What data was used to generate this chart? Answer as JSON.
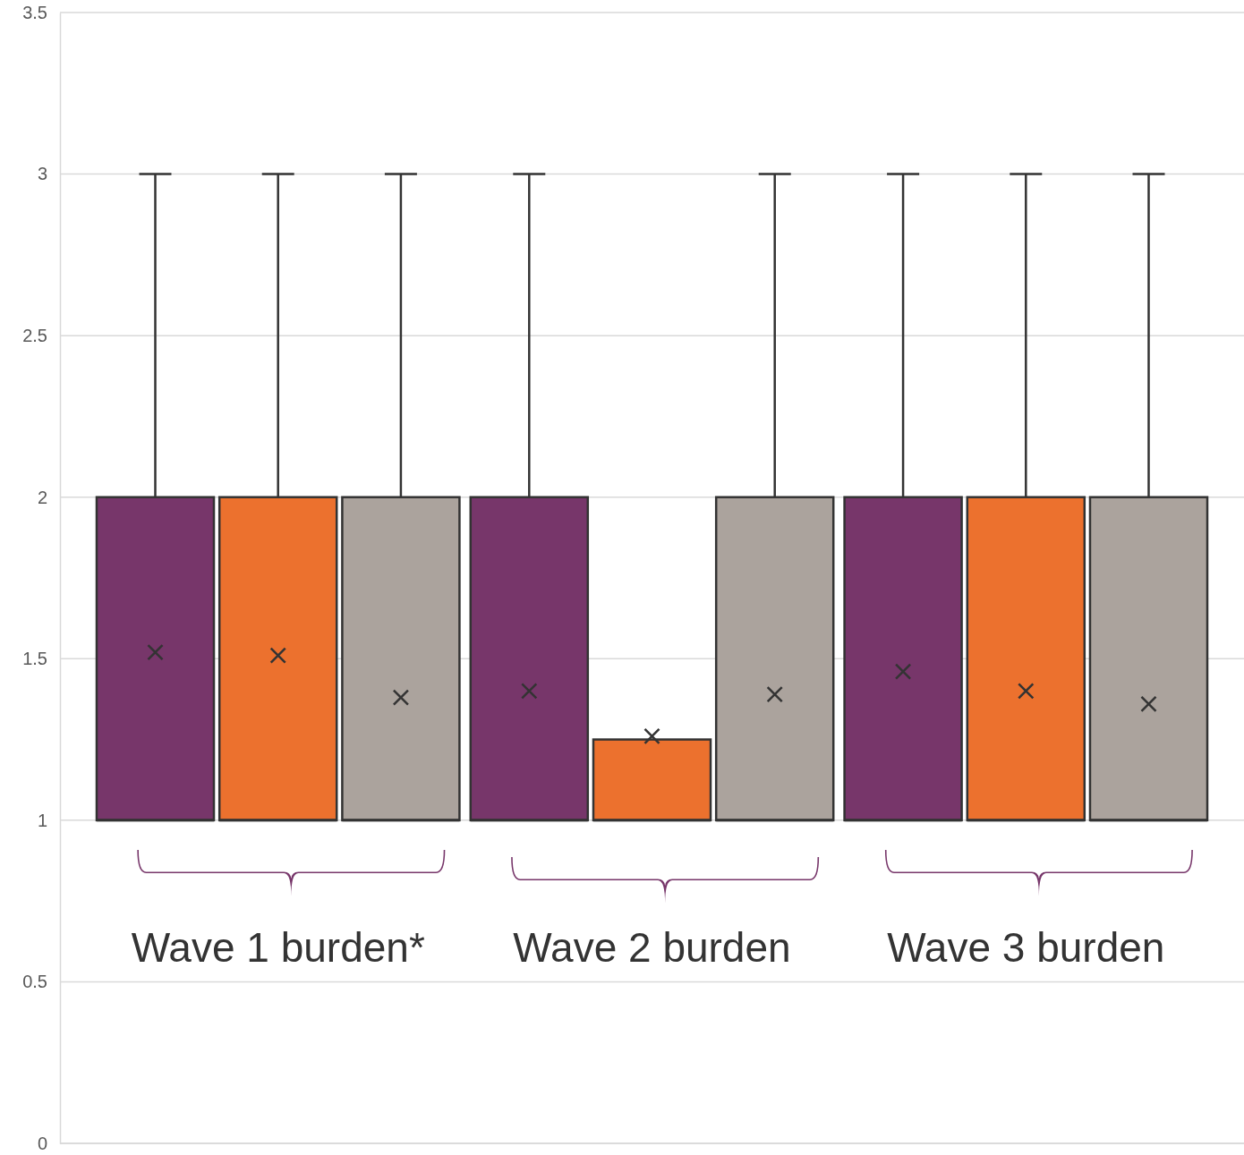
{
  "chart_data": {
    "type": "box",
    "categories": [
      "Wave 1 burden*",
      "Wave 2 burden",
      "Wave 3 burden"
    ],
    "series": [
      {
        "color": "#77366a",
        "boxes": [
          {
            "low": 1,
            "q1": 1,
            "median": 1,
            "q3": 2,
            "high": 3,
            "mean": 1.52
          },
          {
            "low": 1,
            "q1": 1,
            "median": 1,
            "q3": 2,
            "high": 3,
            "mean": 1.4
          },
          {
            "low": 1,
            "q1": 1,
            "median": 1,
            "q3": 2,
            "high": 3,
            "mean": 1.46
          }
        ]
      },
      {
        "color": "#ec712e",
        "boxes": [
          {
            "low": 1,
            "q1": 1,
            "median": 1,
            "q3": 2,
            "high": 3,
            "mean": 1.51
          },
          {
            "low": 1,
            "q1": 1,
            "median": 1,
            "q3": 1.25,
            "high": 1.25,
            "mean": 1.26
          },
          {
            "low": 1,
            "q1": 1,
            "median": 1,
            "q3": 2,
            "high": 3,
            "mean": 1.4
          }
        ]
      },
      {
        "color": "#aba39d",
        "boxes": [
          {
            "low": 1,
            "q1": 1,
            "median": 1,
            "q3": 2,
            "high": 3,
            "mean": 1.38
          },
          {
            "low": 1,
            "q1": 1,
            "median": 1,
            "q3": 2,
            "high": 3,
            "mean": 1.39
          },
          {
            "low": 1,
            "q1": 1,
            "median": 1,
            "q3": 2,
            "high": 3,
            "mean": 1.36
          }
        ]
      }
    ],
    "ylim": [
      0,
      3.5
    ],
    "yticks": [
      0,
      0.5,
      1,
      1.5,
      2,
      2.5,
      3,
      3.5
    ],
    "grid": "y",
    "marker": "cross"
  }
}
